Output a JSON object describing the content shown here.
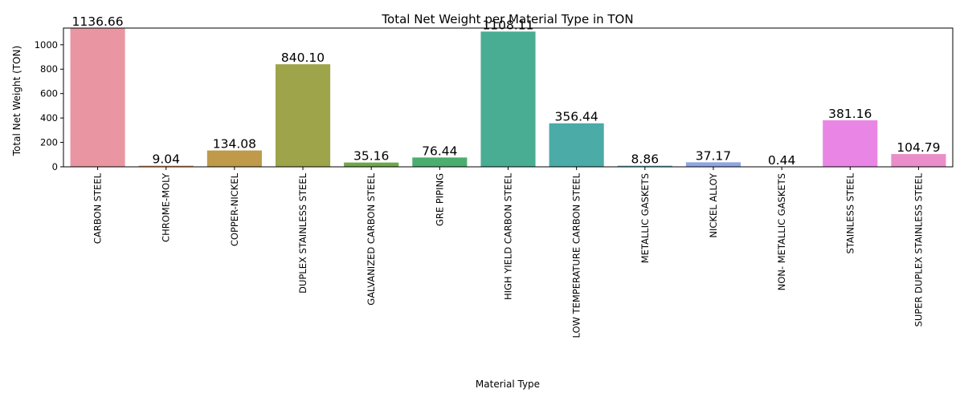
{
  "chart_data": {
    "type": "bar",
    "title": "Total Net Weight per Material Type in TON",
    "xlabel": "Material Type",
    "ylabel": "Total Net Weight (TON)",
    "ylim": [
      0,
      1136.66
    ],
    "yticks": [
      0,
      200,
      400,
      600,
      800,
      1000
    ],
    "grid": false,
    "categories": [
      "CARBON STEEL",
      "CHROME-MOLY",
      "COPPER-NICKEL",
      "DUPLEX STAINLESS STEEL",
      "GALVANIZED CARBON STEEL",
      "GRE PIPING",
      "HIGH YIELD CARBON STEEL",
      "LOW TEMPERATURE CARBON STEEL",
      "METALLIC GASKETS",
      "NICKEL ALLOY",
      "NON- METALLIC GASKETS",
      "STAINLESS STEEL",
      "SUPER DUPLEX STAINLESS STEEL"
    ],
    "values": [
      1136.66,
      9.04,
      134.08,
      840.1,
      35.16,
      76.44,
      1108.11,
      356.44,
      8.86,
      37.17,
      0.44,
      381.16,
      104.79
    ],
    "data_labels": [
      "1136.66",
      "9.04",
      "134.08",
      "840.10",
      "35.16",
      "76.44",
      "1108.11",
      "356.44",
      "8.86",
      "37.17",
      "0.44",
      "381.16",
      "104.79"
    ],
    "colors": [
      "#ea96a2",
      "#de9050",
      "#be9a4a",
      "#9ea44a",
      "#6fa94b",
      "#4bae70",
      "#49ad93",
      "#4aaba7",
      "#4ea9bb",
      "#8ea7e3",
      "#c99be7",
      "#e986e5",
      "#ea8ec9"
    ]
  }
}
